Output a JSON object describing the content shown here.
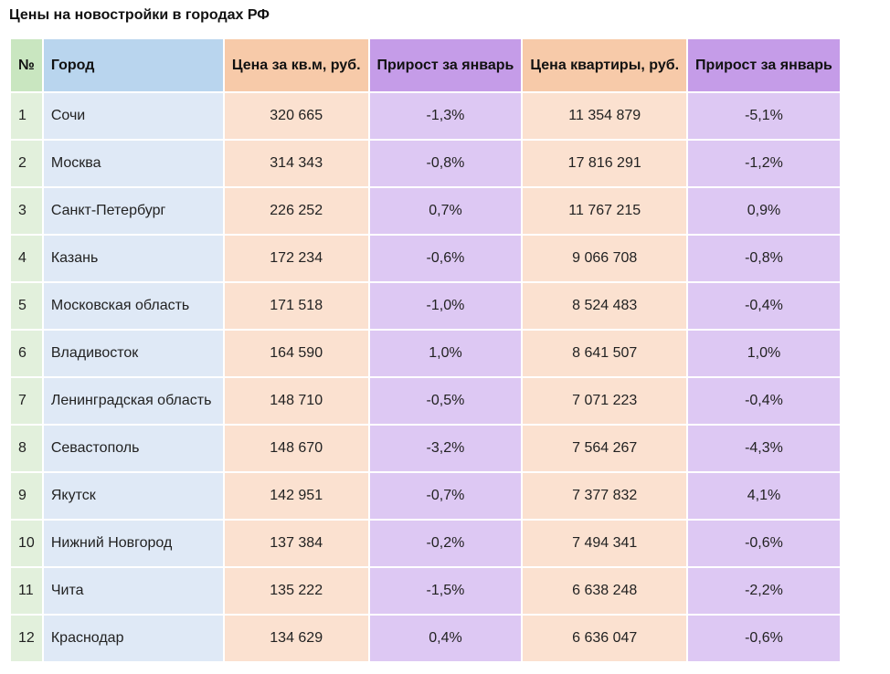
{
  "title": "Цены на новостройки в городах РФ",
  "table": {
    "headers": {
      "num": "№",
      "city": "Город",
      "price_sqm": "Цена за кв.м, руб.",
      "growth_sqm": "Прирост за январь",
      "price_apt": "Цена квартиры, руб.",
      "growth_apt": "Прирост за январь"
    },
    "rows": [
      {
        "num": "1",
        "city": "Сочи",
        "price_sqm": "320 665",
        "growth_sqm": "-1,3%",
        "price_apt": "11 354 879",
        "growth_apt": "-5,1%"
      },
      {
        "num": "2",
        "city": "Москва",
        "price_sqm": "314 343",
        "growth_sqm": "-0,8%",
        "price_apt": "17 816 291",
        "growth_apt": "-1,2%"
      },
      {
        "num": "3",
        "city": "Санкт-Петербург",
        "price_sqm": "226 252",
        "growth_sqm": "0,7%",
        "price_apt": "11 767 215",
        "growth_apt": "0,9%"
      },
      {
        "num": "4",
        "city": "Казань",
        "price_sqm": "172 234",
        "growth_sqm": "-0,6%",
        "price_apt": "9 066 708",
        "growth_apt": "-0,8%"
      },
      {
        "num": "5",
        "city": "Московская область",
        "price_sqm": "171 518",
        "growth_sqm": "-1,0%",
        "price_apt": "8 524 483",
        "growth_apt": "-0,4%"
      },
      {
        "num": "6",
        "city": "Владивосток",
        "price_sqm": "164 590",
        "growth_sqm": "1,0%",
        "price_apt": "8 641 507",
        "growth_apt": "1,0%"
      },
      {
        "num": "7",
        "city": "Ленинградская область",
        "price_sqm": "148 710",
        "growth_sqm": "-0,5%",
        "price_apt": "7 071 223",
        "growth_apt": "-0,4%"
      },
      {
        "num": "8",
        "city": "Севастополь",
        "price_sqm": "148 670",
        "growth_sqm": "-3,2%",
        "price_apt": "7 564 267",
        "growth_apt": "-4,3%"
      },
      {
        "num": "9",
        "city": "Якутск",
        "price_sqm": "142 951",
        "growth_sqm": "-0,7%",
        "price_apt": "7 377 832",
        "growth_apt": "4,1%"
      },
      {
        "num": "10",
        "city": "Нижний Новгород",
        "price_sqm": "137 384",
        "growth_sqm": "-0,2%",
        "price_apt": "7 494 341",
        "growth_apt": "-0,6%"
      },
      {
        "num": "11",
        "city": "Чита",
        "price_sqm": "135 222",
        "growth_sqm": "-1,5%",
        "price_apt": "6 638 248",
        "growth_apt": "-2,2%"
      },
      {
        "num": "12",
        "city": "Краснодар",
        "price_sqm": "134 629",
        "growth_sqm": "0,4%",
        "price_apt": "6 636 047",
        "growth_apt": "-0,6%"
      }
    ]
  }
}
